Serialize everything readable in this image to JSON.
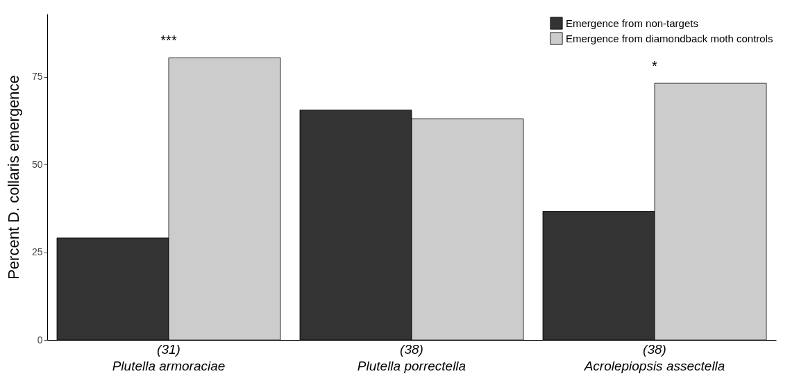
{
  "chart_data": {
    "type": "bar",
    "ylabel": "Percent D. collaris emergence",
    "categories": [
      "(31)\nPlutella armoraciae",
      "(38)\nPlutella porrectella",
      "(38)\nAcrolepiopsis assectella"
    ],
    "series": [
      {
        "name": "Emergence from non-targets",
        "color": "#333333",
        "values": [
          29.1,
          65.6,
          36.7
        ]
      },
      {
        "name": "Emergence from diamondback moth controls",
        "color": "#cccccc",
        "values": [
          80.5,
          63.1,
          73.2
        ]
      }
    ],
    "ylim": [
      0,
      93
    ],
    "yticks": [
      0,
      25,
      50,
      75
    ],
    "grid": false,
    "legend": "top right",
    "annotations": [
      {
        "text": "***",
        "x": "(31)\nPlutella armoraciae",
        "y": 80.5
      },
      {
        "text": "*",
        "x": "(38)\nAcrolepiopsis assectella",
        "y": 73.2
      }
    ]
  }
}
